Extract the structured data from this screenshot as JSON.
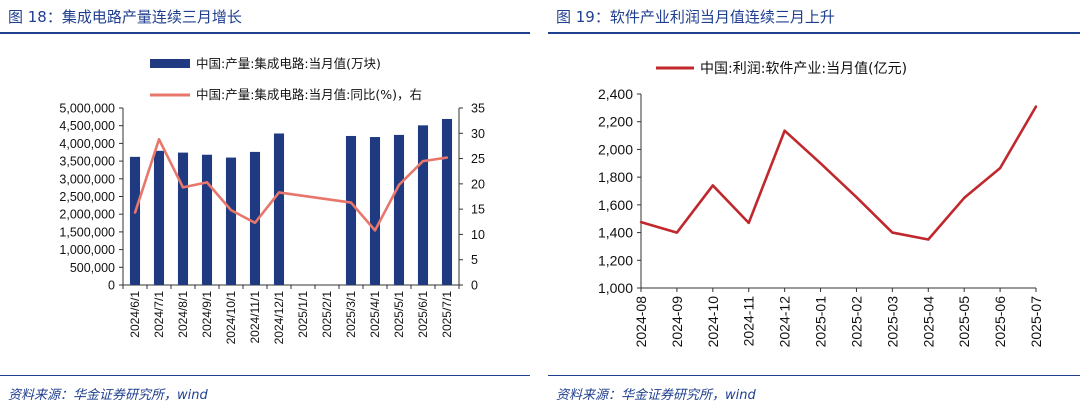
{
  "left": {
    "title": "图 18：集成电路产量连续三月增长",
    "source": "资料来源：华金证券研究所，wind"
  },
  "right": {
    "title": "图 19：软件产业利润当月值连续三月上升",
    "source": "资料来源：华金证券研究所，wind"
  },
  "chart_data": [
    {
      "type": "bar+line",
      "title": "",
      "categories": [
        "2024/6/1",
        "2024/7/1",
        "2024/8/1",
        "2024/9/1",
        "2024/10/1",
        "2024/11/1",
        "2024/12/1",
        "2025/1/1",
        "2025/2/1",
        "2025/3/1",
        "2025/4/1",
        "2025/5/1",
        "2025/6/1",
        "2025/7/1"
      ],
      "series": [
        {
          "name": "中国:产量:集成电路:当月值(万块)",
          "kind": "bar",
          "axis": "left",
          "color": "#1f3a80",
          "values": [
            3620000,
            3790000,
            3740000,
            3680000,
            3600000,
            3760000,
            4280000,
            null,
            null,
            4210000,
            4180000,
            4240000,
            4510000,
            4690000
          ]
        },
        {
          "name": "中国:产量:集成电路:当月值:同比(%)，右",
          "kind": "line",
          "axis": "right",
          "color": "#e8766b",
          "values": [
            14.3,
            28.8,
            19.3,
            20.3,
            14.8,
            12.3,
            18.3,
            null,
            null,
            16.3,
            10.8,
            19.8,
            24.5,
            25.2
          ]
        }
      ],
      "ylim_left": [
        0,
        5000000
      ],
      "yticks_left": [
        "0",
        "500,000",
        "1,000,000",
        "1,500,000",
        "2,000,000",
        "2,500,000",
        "3,000,000",
        "3,500,000",
        "4,000,000",
        "4,500,000",
        "5,000,000"
      ],
      "ylim_right": [
        0,
        35
      ],
      "yticks_right": [
        "0",
        "5",
        "10",
        "15",
        "20",
        "25",
        "30",
        "35"
      ],
      "grid": false,
      "legend": "top"
    },
    {
      "type": "line",
      "title": "",
      "categories": [
        "2024-08",
        "2024-09",
        "2024-10",
        "2024-11",
        "2024-12",
        "2025-01",
        "2025-02",
        "2025-03",
        "2025-04",
        "2025-05",
        "2025-06",
        "2025-07"
      ],
      "series": [
        {
          "name": "中国:利润:软件产业:当月值(亿元)",
          "color": "#c0282d",
          "values": [
            1475,
            1400,
            1740,
            1470,
            2135,
            1900,
            1655,
            1400,
            1350,
            1650,
            1865,
            2310
          ]
        }
      ],
      "ylim": [
        1000,
        2400
      ],
      "yticks": [
        "1,000",
        "1,200",
        "1,400",
        "1,600",
        "1,800",
        "2,000",
        "2,200",
        "2,400"
      ],
      "grid": false,
      "legend": "top"
    }
  ]
}
